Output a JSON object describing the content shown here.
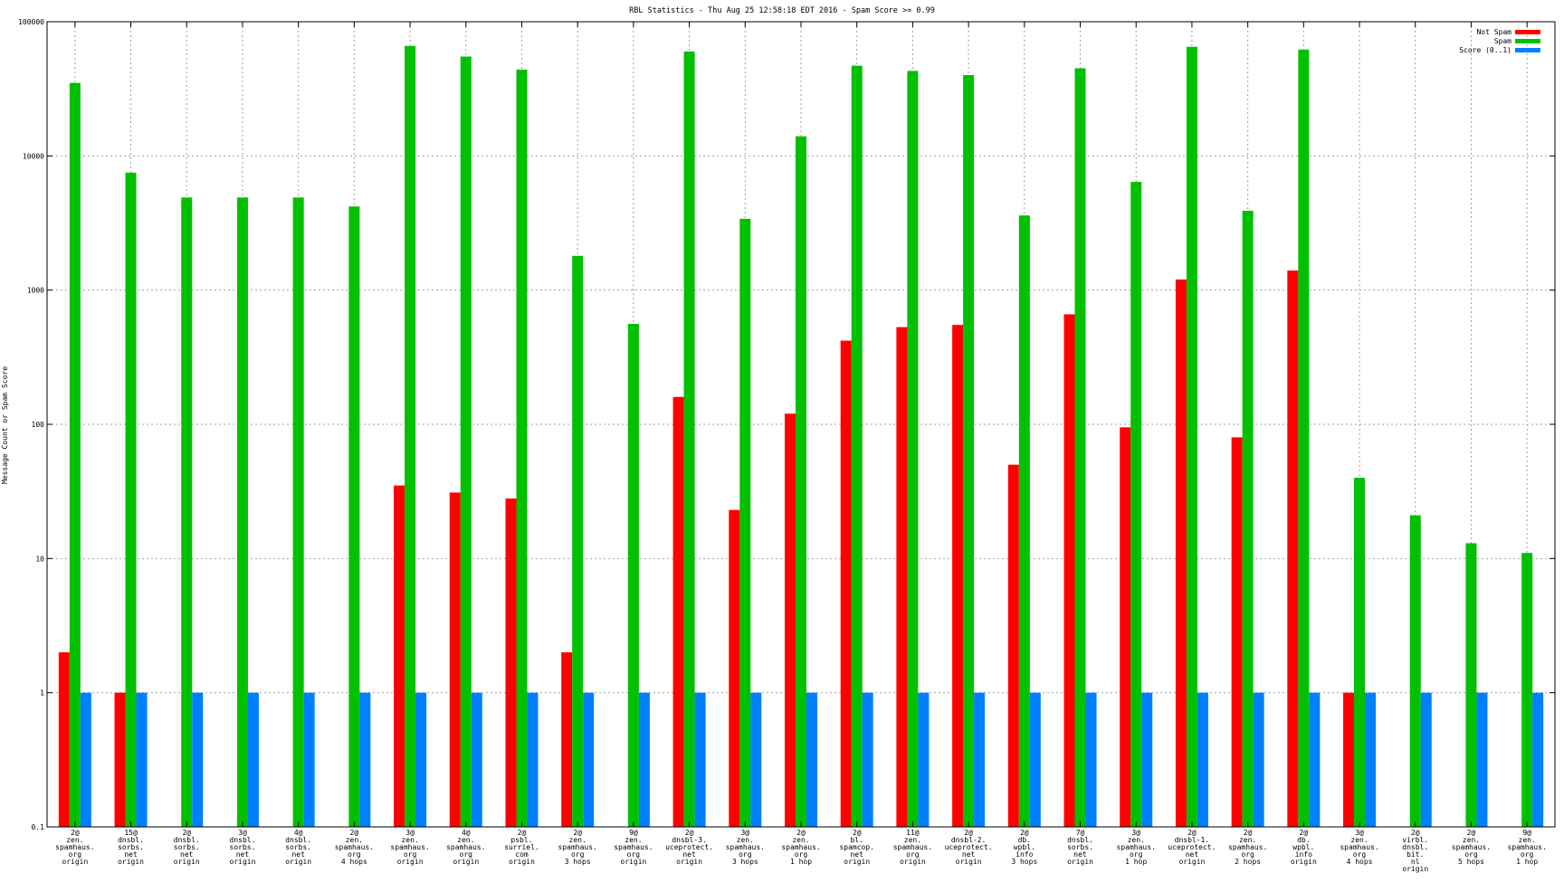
{
  "chart_data": {
    "type": "bar",
    "title": "RBL Statistics - Thu Aug 25 12:58:18 EDT 2016 - Spam Score >= 0.99",
    "xlabel": "",
    "ylabel": "Message Count or Spam Score",
    "yscale": "log",
    "ylim": [
      0.1,
      100000
    ],
    "yticks": [
      "0.1",
      "1",
      "10",
      "100",
      "1000",
      "10000",
      "100000"
    ],
    "grid": true,
    "legend_position": "top-right",
    "categories": [
      "2@ zen. spamhaus. org origin",
      "15@ dnsbl. sorbs. net origin",
      "2@ dnsbl. sorbs. net origin",
      "3@ dnsbl. sorbs. net origin",
      "4@ dnsbl. sorbs. net origin",
      "2@ zen. spamhaus. org 4 hops",
      "3@ zen. spamhaus. org origin",
      "4@ zen. spamhaus. org origin",
      "2@ psbl. surriel. com origin",
      "2@ zen. spamhaus. org 3 hops",
      "9@ zen. spamhaus. org origin",
      "2@ dnsbl-3. uceprotect. net origin",
      "3@ zen. spamhaus. org 3 hops",
      "2@ zen. spamhaus. org 1 hop",
      "2@ bl. spamcop. net origin",
      "11@ zen. spamhaus. org origin",
      "2@ dnsbl-2. uceprotect. net origin",
      "2@ db. wpbl. info 3 hops",
      "7@ dnsbl. sorbs. net origin",
      "3@ zen. spamhaus. org 1 hop",
      "2@ dnsbl-1. uceprotect. net origin",
      "2@ zen. spamhaus. org 2 hops",
      "2@ db. wpbl. info origin",
      "3@ zen. spamhaus. org 4 hops",
      "2@ virbl. dnsbl. bit. nl origin",
      "2@ zen. spamhaus. org 5 hops",
      "9@ zen. spamhaus. org 1 hop"
    ],
    "category_lines": [
      [
        "2@",
        "zen.",
        "spamhaus.",
        "org",
        "origin"
      ],
      [
        "15@",
        "dnsbl.",
        "sorbs.",
        "net",
        "origin"
      ],
      [
        "2@",
        "dnsbl.",
        "sorbs.",
        "net",
        "origin"
      ],
      [
        "3@",
        "dnsbl.",
        "sorbs.",
        "net",
        "origin"
      ],
      [
        "4@",
        "dnsbl.",
        "sorbs.",
        "net",
        "origin"
      ],
      [
        "2@",
        "zen.",
        "spamhaus.",
        "org",
        "4 hops"
      ],
      [
        "3@",
        "zen.",
        "spamhaus.",
        "org",
        "origin"
      ],
      [
        "4@",
        "zen.",
        "spamhaus.",
        "org",
        "origin"
      ],
      [
        "2@",
        "psbl.",
        "surriel.",
        "com",
        "origin"
      ],
      [
        "2@",
        "zen.",
        "spamhaus.",
        "org",
        "3 hops"
      ],
      [
        "9@",
        "zen.",
        "spamhaus.",
        "org",
        "origin"
      ],
      [
        "2@",
        "dnsbl-3.",
        "uceprotect.",
        "net",
        "origin"
      ],
      [
        "3@",
        "zen.",
        "spamhaus.",
        "org",
        "3 hops"
      ],
      [
        "2@",
        "zen.",
        "spamhaus.",
        "org",
        "1 hop"
      ],
      [
        "2@",
        "bl.",
        "spamcop.",
        "net",
        "origin"
      ],
      [
        "11@",
        "zen.",
        "spamhaus.",
        "org",
        "origin"
      ],
      [
        "2@",
        "dnsbl-2.",
        "uceprotect.",
        "net",
        "origin"
      ],
      [
        "2@",
        "db.",
        "wpbl.",
        "info",
        "3 hops"
      ],
      [
        "7@",
        "dnsbl.",
        "sorbs.",
        "net",
        "origin"
      ],
      [
        "3@",
        "zen.",
        "spamhaus.",
        "org",
        "1 hop"
      ],
      [
        "2@",
        "dnsbl-1.",
        "uceprotect.",
        "net",
        "origin"
      ],
      [
        "2@",
        "zen.",
        "spamhaus.",
        "org",
        "2 hops"
      ],
      [
        "2@",
        "db.",
        "wpbl.",
        "info",
        "origin"
      ],
      [
        "3@",
        "zen.",
        "spamhaus.",
        "org",
        "4 hops"
      ],
      [
        "2@",
        "virbl.",
        "dnsbl.",
        "bit.",
        "nl",
        "origin"
      ],
      [
        "2@",
        "zen.",
        "spamhaus.",
        "org",
        "5 hops"
      ],
      [
        "9@",
        "zen.",
        "spamhaus.",
        "org",
        "1 hop"
      ]
    ],
    "series": [
      {
        "name": "Not Spam",
        "color": "#ff0000",
        "values": [
          2,
          1,
          null,
          null,
          null,
          null,
          35,
          31,
          28,
          2,
          null,
          160,
          23,
          120,
          420,
          530,
          550,
          50,
          660,
          95,
          1200,
          80,
          1400,
          1,
          null,
          null,
          null
        ]
      },
      {
        "name": "Spam",
        "color": "#00c000",
        "values": [
          35000,
          7500,
          4900,
          4900,
          4900,
          4200,
          66000,
          55000,
          44000,
          1800,
          560,
          60000,
          3400,
          14000,
          47000,
          43000,
          40000,
          3600,
          45000,
          6400,
          65000,
          3900,
          62000,
          40,
          21,
          13,
          11
        ]
      },
      {
        "name": "Score (0..1)",
        "color": "#0080ff",
        "values": [
          1,
          1,
          1,
          1,
          1,
          1,
          1,
          1,
          1,
          1,
          1,
          1,
          1,
          1,
          1,
          1,
          1,
          1,
          1,
          1,
          1,
          1,
          1,
          1,
          1,
          1,
          1
        ]
      }
    ]
  }
}
